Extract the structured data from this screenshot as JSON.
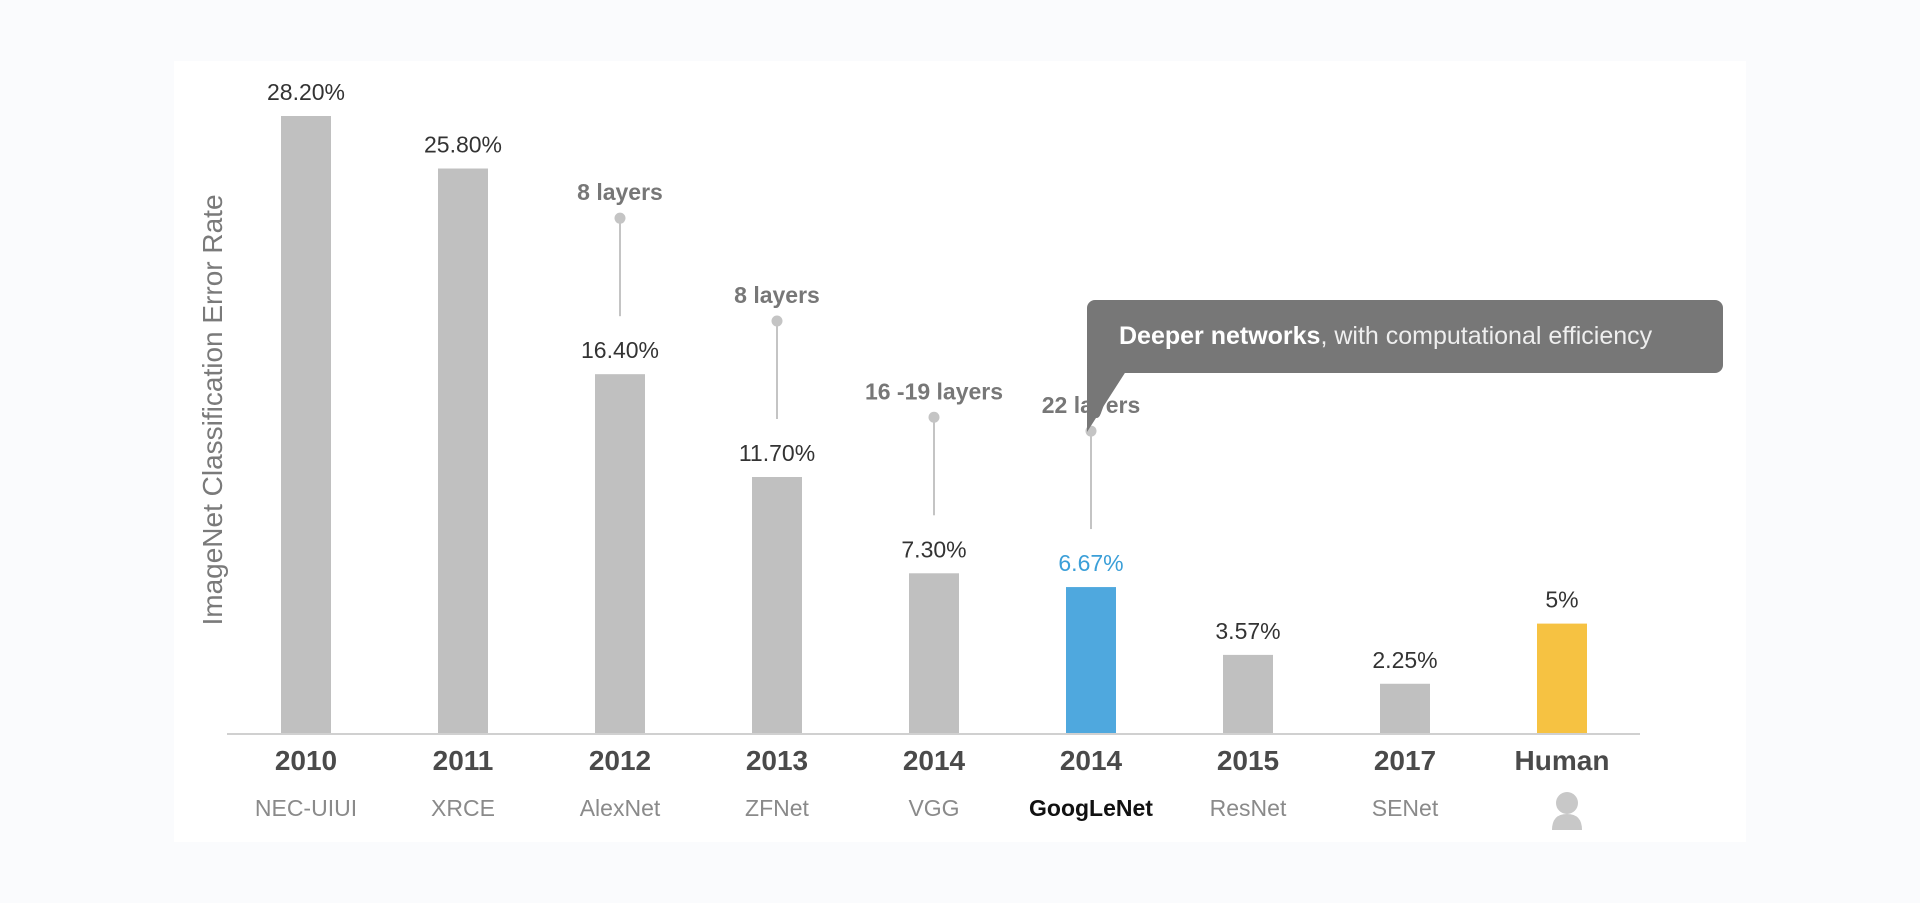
{
  "chart_data": {
    "type": "bar",
    "ylabel": "ImageNet Classification Error Rate",
    "categories": [
      "2010",
      "2011",
      "2012",
      "2013",
      "2014",
      "2014",
      "2015",
      "2017",
      "Human"
    ],
    "names": [
      "NEC-UIUI",
      "XRCE",
      "AlexNet",
      "ZFNet",
      "VGG",
      "GoogLeNet",
      "ResNet",
      "SENet",
      ""
    ],
    "values": [
      28.2,
      25.8,
      16.4,
      11.7,
      7.3,
      6.67,
      3.57,
      2.25,
      5
    ],
    "value_labels": [
      "28.20%",
      "25.80%",
      "16.40%",
      "11.70%",
      "7.30%",
      "6.67%",
      "3.57%",
      "2.25%",
      "5%"
    ],
    "layer_annotations": [
      "",
      "",
      "8 layers",
      "8 layers",
      "16 -19 layers",
      "22 layers",
      "",
      "",
      ""
    ],
    "highlight_index": 5,
    "ylim": [
      0,
      28.2
    ],
    "grid": false,
    "colors": {
      "default": "#c0c0c0",
      "highlight": "#4fa8de",
      "human": "#f6c242",
      "highlight_label": "#3b9fd8",
      "label": "#333333",
      "annotation": "#777777"
    },
    "human_icon": "person-icon"
  },
  "callout": {
    "bold": "Deeper networks",
    "rest": ", with computational efficiency"
  }
}
